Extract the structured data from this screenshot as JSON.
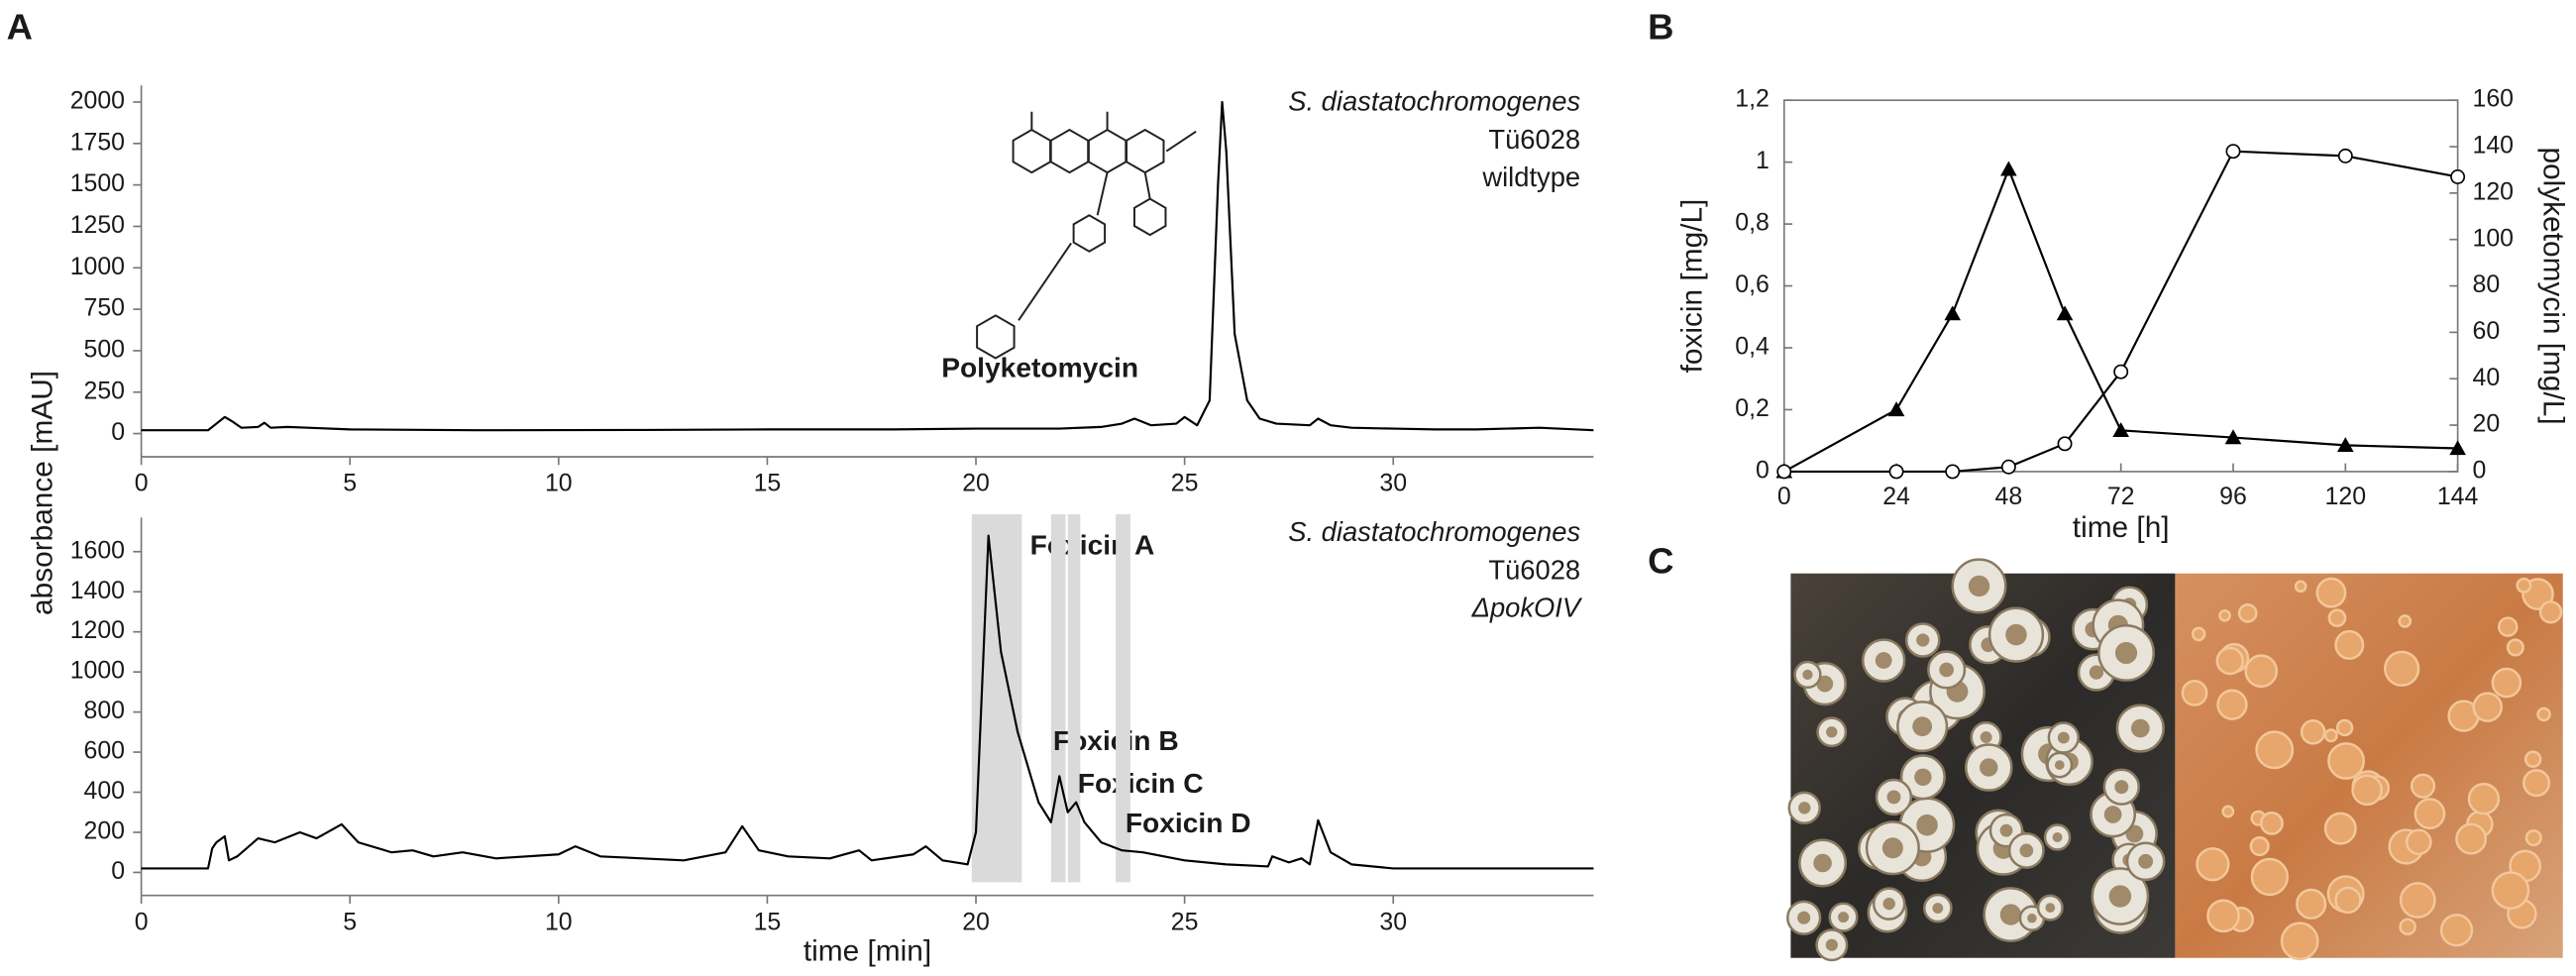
{
  "chart_data": [
    {
      "type": "line",
      "panel_label": "A",
      "ylabel": "absorbance [mAU]",
      "annotations": [
        "S. diastatochromogenes",
        "Tü6028",
        "wildtype"
      ],
      "compound_label": "Polyketomycin",
      "xlim": [
        0,
        34.8
      ],
      "xticks": [
        0,
        5,
        10,
        15,
        20,
        25,
        30
      ],
      "ylim": [
        -140,
        2100
      ],
      "yticks": [
        0,
        250,
        500,
        750,
        1000,
        1250,
        1500,
        1750,
        2000
      ],
      "x": [
        0,
        1.6,
        1.8,
        2.0,
        2.2,
        2.4,
        2.8,
        2.95,
        3.1,
        3.5,
        4,
        5,
        8,
        12,
        15,
        18,
        20,
        22,
        23,
        23.5,
        23.8,
        24.2,
        24.8,
        25.0,
        25.3,
        25.6,
        25.8,
        25.9,
        26.0,
        26.2,
        26.5,
        26.8,
        27.2,
        28.0,
        28.2,
        28.5,
        29,
        30,
        31,
        32,
        33.5,
        34.8
      ],
      "series": [
        {
          "color": "#000000",
          "values": [
            20,
            20,
            60,
            100,
            70,
            35,
            40,
            65,
            35,
            40,
            35,
            25,
            20,
            22,
            25,
            25,
            30,
            30,
            40,
            60,
            90,
            50,
            60,
            100,
            50,
            200,
            1500,
            2000,
            1700,
            600,
            200,
            90,
            60,
            50,
            90,
            50,
            35,
            30,
            25,
            25,
            35,
            20
          ]
        }
      ]
    },
    {
      "type": "line",
      "xlabel": "time [min]",
      "annotations": [
        "S. diastatochromogenes",
        "Tü6028",
        "ΔpokOIV"
      ],
      "highlights": [
        {
          "label": "Foxicin A",
          "range": [
            19.9,
            21.1
          ]
        },
        {
          "label": "Foxicin B",
          "range": [
            21.8,
            22.15
          ]
        },
        {
          "label": "Foxicin C",
          "range": [
            22.2,
            22.5
          ]
        },
        {
          "label": "Foxicin D",
          "range": [
            23.35,
            23.7
          ]
        }
      ],
      "xlim": [
        0,
        34.8
      ],
      "xticks": [
        0,
        5,
        10,
        15,
        20,
        25,
        30
      ],
      "ylim": [
        -115,
        1770
      ],
      "yticks": [
        0,
        200,
        400,
        600,
        800,
        1000,
        1200,
        1400,
        1600
      ],
      "x": [
        0,
        1.6,
        1.7,
        1.8,
        2.0,
        2.1,
        2.3,
        2.8,
        3.2,
        3.8,
        4.2,
        4.8,
        5.2,
        6,
        6.5,
        7,
        7.7,
        8.5,
        10,
        10.4,
        11,
        12,
        13,
        14,
        14.4,
        14.8,
        15.5,
        16.5,
        17.2,
        17.5,
        18.5,
        18.8,
        19.2,
        19.8,
        20.0,
        20.3,
        20.6,
        21,
        21.5,
        21.8,
        22,
        22.2,
        22.4,
        22.6,
        23,
        23.5,
        24,
        25,
        26,
        27,
        27.1,
        27.5,
        27.8,
        28,
        28.2,
        28.5,
        29,
        30,
        34.8
      ],
      "series": [
        {
          "color": "#000000",
          "values": [
            20,
            20,
            120,
            150,
            180,
            60,
            80,
            170,
            150,
            200,
            170,
            240,
            150,
            100,
            110,
            80,
            100,
            70,
            90,
            130,
            80,
            70,
            60,
            100,
            230,
            110,
            80,
            70,
            110,
            60,
            90,
            130,
            60,
            40,
            200,
            1680,
            1100,
            700,
            350,
            250,
            480,
            300,
            350,
            250,
            150,
            110,
            100,
            60,
            40,
            30,
            80,
            50,
            70,
            40,
            260,
            100,
            40,
            20,
            20
          ]
        }
      ]
    },
    {
      "type": "line",
      "panel_label": "B",
      "xlabel": "time [h]",
      "ylabel": "foxicin [mg/L]",
      "y2label": "polyketomycin [mg/L]",
      "x": [
        0,
        24,
        36,
        48,
        60,
        72,
        96,
        120,
        144
      ],
      "xlim": [
        0,
        144
      ],
      "xticks": [
        0,
        24,
        48,
        72,
        96,
        120,
        144
      ],
      "ylim": [
        0,
        1.2
      ],
      "yticks": [
        0,
        {
          "value": 0.2,
          "label": "0,2"
        },
        {
          "value": 0.4,
          "label": "0,4"
        },
        {
          "value": 0.6,
          "label": "0,6"
        },
        {
          "value": 0.8,
          "label": "0,8"
        },
        1,
        {
          "value": 1.2,
          "label": "1,2"
        }
      ],
      "y2lim": [
        0,
        160
      ],
      "y2ticks": [
        0,
        20,
        40,
        60,
        80,
        100,
        120,
        140,
        160
      ],
      "series": [
        {
          "color": "#000000",
          "marker": "triangle",
          "values": [
            0,
            0.2,
            0.51,
            0.977,
            0.51,
            0.133,
            0.11,
            0.085,
            0.075
          ]
        },
        {
          "color": "#000000",
          "marker": "circle",
          "axis": "y2",
          "values": [
            0,
            0,
            0,
            2,
            12,
            43,
            138,
            136,
            127
          ]
        }
      ]
    }
  ],
  "photo": {
    "panel_label": "C"
  }
}
